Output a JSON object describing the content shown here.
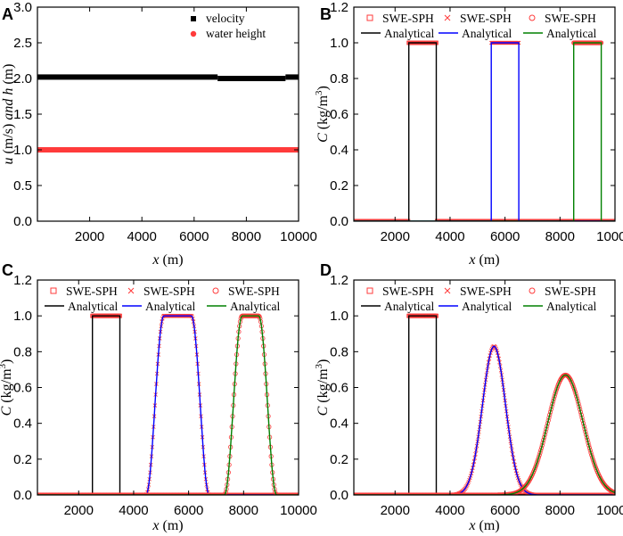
{
  "chart_data": [
    {
      "panel": "A",
      "type": "scatter",
      "xlabel": "x (m)",
      "ylabel": "u (m/s) and h (m)",
      "xlim": [
        0,
        10000
      ],
      "ylim": [
        0.0,
        3.0
      ],
      "xticks": [
        2000,
        4000,
        6000,
        8000,
        10000
      ],
      "yticks": [
        0.0,
        0.5,
        1.0,
        1.5,
        2.0,
        2.5,
        3.0
      ],
      "series": [
        {
          "name": "velocity",
          "color": "#000000",
          "marker": "square",
          "segments": [
            [
              0,
              6900,
              2.02
            ],
            [
              6900,
              9500,
              2.0
            ],
            [
              9500,
              10000,
              2.02
            ]
          ]
        },
        {
          "name": "water height",
          "color": "#ff3b3b",
          "marker": "circle",
          "segments": [
            [
              0,
              10000,
              1.0
            ]
          ]
        }
      ]
    },
    {
      "panel": "B",
      "type": "line",
      "xlabel": "x (m)",
      "ylabel": "C (kg/m3)",
      "xlim": [
        500,
        10000
      ],
      "ylim": [
        0.0,
        1.2
      ],
      "xticks": [
        2000,
        4000,
        6000,
        8000,
        10000
      ],
      "yticks": [
        0.0,
        0.2,
        0.4,
        0.6,
        0.8,
        1.0,
        1.2
      ],
      "legend": [
        {
          "sph": "SWE-SPH",
          "sph_marker": "square",
          "analytical": "Analytical",
          "color": "#000000"
        },
        {
          "sph": "SWE-SPH",
          "sph_marker": "cross",
          "analytical": "Analytical",
          "color": "#0000ff"
        },
        {
          "sph": "SWE-SPH",
          "sph_marker": "circle",
          "analytical": "Analytical",
          "color": "#008000"
        }
      ],
      "series": [
        {
          "name": "Analytical",
          "color": "#000000",
          "shape": "box",
          "start": 2500,
          "end": 3500,
          "height": 1.0
        },
        {
          "name": "Analytical",
          "color": "#0000ff",
          "shape": "box",
          "start": 5500,
          "end": 6500,
          "height": 1.0
        },
        {
          "name": "Analytical",
          "color": "#008000",
          "shape": "box",
          "start": 8500,
          "end": 9500,
          "height": 1.0
        }
      ]
    },
    {
      "panel": "C",
      "type": "line",
      "xlabel": "x (m)",
      "ylabel": "C (kg/m3)",
      "xlim": [
        500,
        10000
      ],
      "ylim": [
        0.0,
        1.2
      ],
      "xticks": [
        2000,
        4000,
        6000,
        8000,
        10000
      ],
      "yticks": [
        0.0,
        0.2,
        0.4,
        0.6,
        0.8,
        1.0,
        1.2
      ],
      "legend": [
        {
          "sph": "SWE-SPH",
          "sph_marker": "square",
          "analytical": "Analytical",
          "color": "#000000"
        },
        {
          "sph": "SWE-SPH",
          "sph_marker": "cross",
          "analytical": "Analytical",
          "color": "#0000ff"
        },
        {
          "sph": "SWE-SPH",
          "sph_marker": "circle",
          "analytical": "Analytical",
          "color": "#008000"
        }
      ],
      "series": [
        {
          "name": "Analytical",
          "color": "#000000",
          "shape": "box",
          "start": 2500,
          "end": 3500,
          "height": 1.0
        },
        {
          "name": "Analytical",
          "color": "#0000ff",
          "shape": "smooth",
          "center": 5600,
          "half_width": 500,
          "ramp": 650,
          "height": 1.0
        },
        {
          "name": "Analytical",
          "color": "#008000",
          "shape": "smooth",
          "center": 8250,
          "half_width": 300,
          "ramp": 650,
          "height": 1.0
        }
      ]
    },
    {
      "panel": "D",
      "type": "line",
      "xlabel": "x (m)",
      "ylabel": "C (kg/m3)",
      "xlim": [
        500,
        10000
      ],
      "ylim": [
        0.0,
        1.2
      ],
      "xticks": [
        2000,
        4000,
        6000,
        8000,
        10000
      ],
      "yticks": [
        0.0,
        0.2,
        0.4,
        0.6,
        0.8,
        1.0,
        1.2
      ],
      "legend": [
        {
          "sph": "SWE-SPH",
          "sph_marker": "square",
          "analytical": "Analytical",
          "color": "#000000"
        },
        {
          "sph": "SWE-SPH",
          "sph_marker": "cross",
          "analytical": "Analytical",
          "color": "#0000ff"
        },
        {
          "sph": "SWE-SPH",
          "sph_marker": "circle",
          "analytical": "Analytical",
          "color": "#008000"
        }
      ],
      "series": [
        {
          "name": "Analytical",
          "color": "#000000",
          "shape": "box",
          "start": 2500,
          "end": 3500,
          "height": 1.0
        },
        {
          "name": "Analytical",
          "color": "#0000ff",
          "shape": "gauss",
          "center": 5600,
          "sigma": 420,
          "height": 0.83
        },
        {
          "name": "Analytical",
          "color": "#008000",
          "shape": "gauss",
          "center": 8200,
          "sigma": 640,
          "height": 0.67
        }
      ]
    }
  ]
}
